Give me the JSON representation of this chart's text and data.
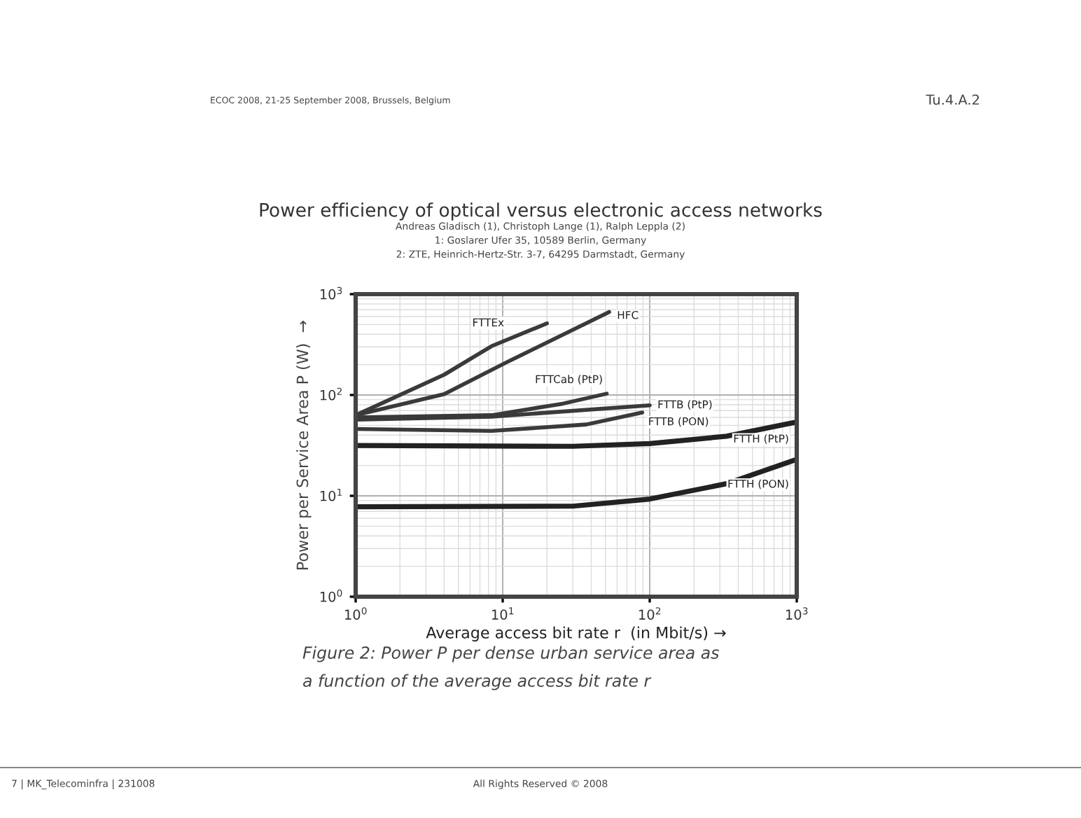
{
  "chart_data": {
    "type": "line",
    "title": "Power efficiency of optical versus electronic access networks",
    "xlabel": "Average access bit rate r  (in Mbit/s) →",
    "ylabel": "Power per Service Area P (W)  →",
    "log": "xy",
    "xlim": [
      1,
      1000
    ],
    "ylim": [
      1,
      1000
    ],
    "xticks": [
      {
        "value": 1,
        "label": "10$^{0}$"
      },
      {
        "value": 10,
        "label": "10$^{1}$"
      },
      {
        "value": 100,
        "label": "10$^{2}$"
      },
      {
        "value": 1000,
        "label": "10$^{3}$"
      }
    ],
    "yticks": [
      {
        "value": 1,
        "label": "10$^{0}$"
      },
      {
        "value": 10,
        "label": "10$^{1}$"
      },
      {
        "value": 100,
        "label": "10$^{2}$"
      },
      {
        "value": 1000,
        "label": "10$^{3}$"
      }
    ],
    "grid": true,
    "legend": false,
    "marker": "none",
    "line_style": "solid",
    "series": [
      {
        "name": "FTTEx",
        "color": "#3a3a3a",
        "x": [
          1,
          4,
          8.4,
          20
        ],
        "values": [
          63,
          159,
          305,
          513
        ]
      },
      {
        "name": "HFC",
        "color": "#3a3a3a",
        "x": [
          1,
          4,
          10.5,
          53
        ],
        "values": [
          63,
          102,
          209,
          665
        ]
      },
      {
        "name": "FTTCab (PtP)",
        "color": "#3a3a3a",
        "x": [
          1,
          8.4,
          25.6,
          51
        ],
        "values": [
          60,
          63,
          82,
          103
        ]
      },
      {
        "name": "FTTB (PtP)",
        "color": "#3a3a3a",
        "x": [
          1,
          8.4,
          100
        ],
        "values": [
          57,
          61,
          79
        ]
      },
      {
        "name": "FTTB (PON)",
        "color": "#3a3a3a",
        "x": [
          1,
          8.4,
          37,
          89
        ],
        "values": [
          46,
          44,
          51,
          67
        ]
      },
      {
        "name": "FTTH (PtP)",
        "color": "#222222",
        "x": [
          1,
          30,
          100,
          333,
          1000
        ],
        "values": [
          31.6,
          31,
          33,
          39,
          54
        ]
      },
      {
        "name": "FTTH (PON)",
        "color": "#222222",
        "x": [
          1,
          30,
          100,
          333,
          1000
        ],
        "values": [
          7.8,
          7.9,
          9.3,
          13.2,
          23
        ]
      }
    ],
    "annotations": [
      "ECOC 2008, 21-25 September 2008, Brussels, Belgium",
      "Tu.4.A.2",
      "Andreas Gladisch (1), Christoph Lange (1), Ralph Leppla (2)",
      "1: Goslarer Ufer 35, 10589 Berlin, Germany",
      "2: ZTE, Heinrich-Hertz-Str. 3-7, 64295 Darmstadt, Germany",
      "Figure 2: Power P per dense urban service area as",
      "a function of the average access bit rate r",
      "7 | MK_Telecominfra | 231008",
      "All Rights Reserved © 2008"
    ]
  }
}
